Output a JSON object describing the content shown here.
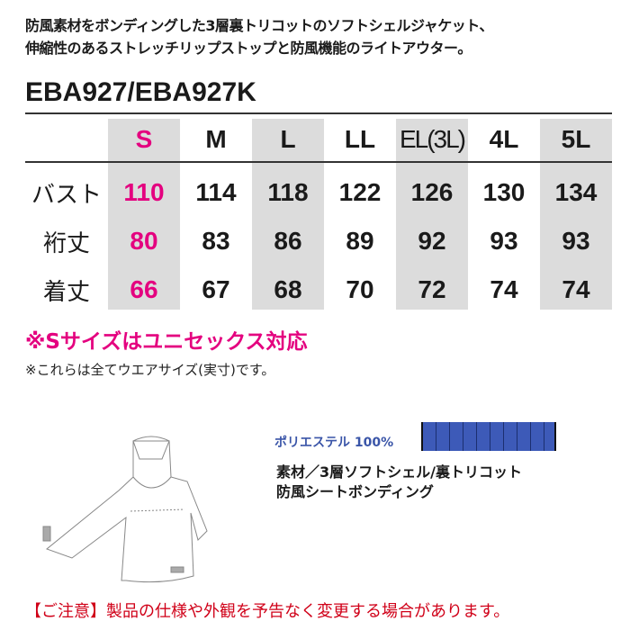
{
  "description": [
    "防風素材をボンディングした3層裏トリコットのソフトシェルジャケット、",
    "伸縮性のあるストレッチリップストップと防風機能のライトアウター。"
  ],
  "model": "EBA927/EBA927K",
  "size_table": {
    "headers": [
      "S",
      "M",
      "L",
      "LL",
      "EL(3L)",
      "4L",
      "5L"
    ],
    "rows": [
      {
        "label": "バスト",
        "values": [
          "110",
          "114",
          "118",
          "122",
          "126",
          "130",
          "134"
        ]
      },
      {
        "label": "裄丈",
        "values": [
          "80",
          "83",
          "86",
          "89",
          "92",
          "93",
          "93"
        ]
      },
      {
        "label": "着丈",
        "values": [
          "66",
          "67",
          "68",
          "70",
          "72",
          "74",
          "74"
        ]
      }
    ]
  },
  "unisex_note": "※Sサイズはユニセックス対応",
  "size_note": "※これらは全てウエアサイズ(実寸)です。",
  "fiber": {
    "label": "ポリエステル 100%",
    "percent": 100
  },
  "material": [
    "素材／3層ソフトシェル/裏トリコット",
    "防風シートボンディング"
  ],
  "caution": "【ご注意】製品の仕様や外観を予告なく変更する場合があります。",
  "colors": {
    "accent": "#e4007f",
    "fiber": "#3d5ab8",
    "caution": "#d00018"
  }
}
